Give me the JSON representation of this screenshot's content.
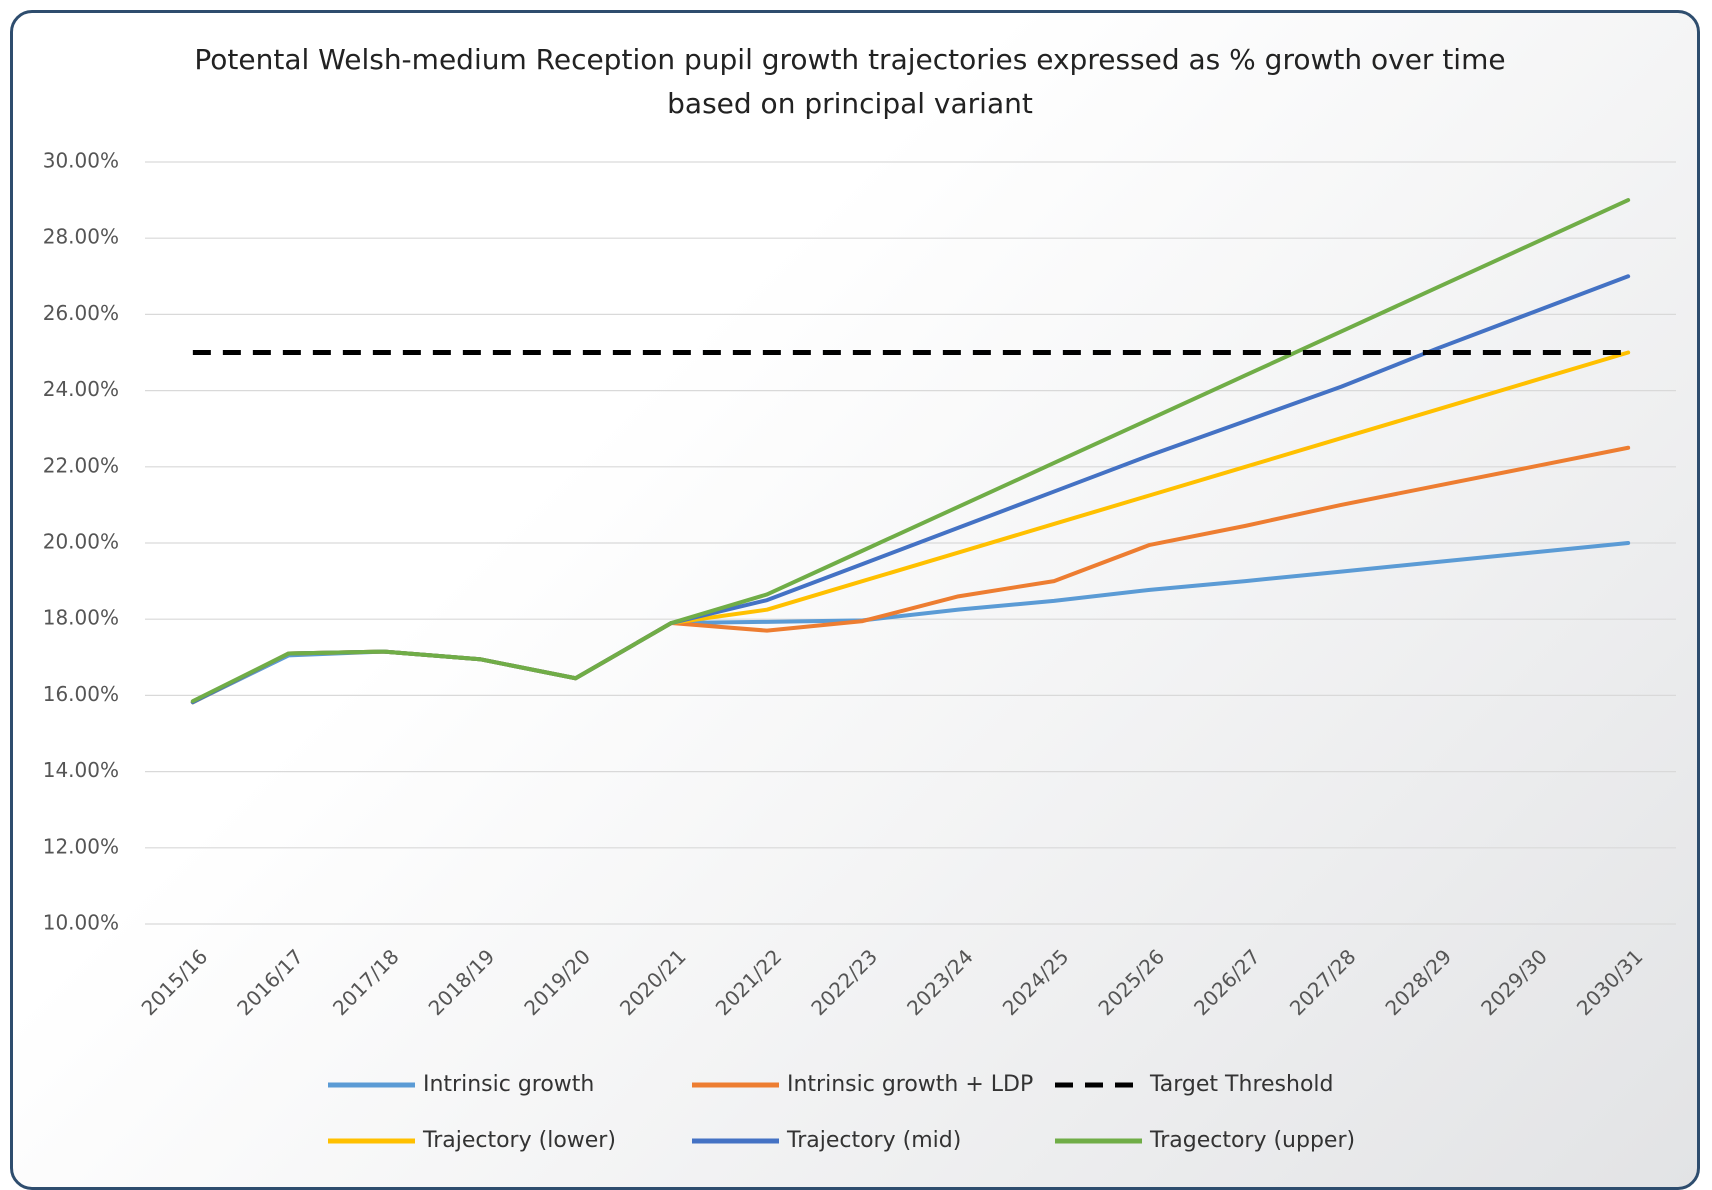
{
  "chart_data": {
    "type": "line",
    "title": "Potental Welsh-medium Reception pupil growth trajectories expressed as % growth over time based on principal variant",
    "categories": [
      "2015/16",
      "2016/17",
      "2017/18",
      "2018/19",
      "2019/20",
      "2020/21",
      "2021/22",
      "2022/23",
      "2023/24",
      "2024/25",
      "2025/26",
      "2026/27",
      "2027/28",
      "2028/29",
      "2029/30",
      "2030/31"
    ],
    "ylim": [
      10,
      30
    ],
    "yticks": [
      {
        "value": 10,
        "label": "10.00%"
      },
      {
        "value": 12,
        "label": "12.00%"
      },
      {
        "value": 14,
        "label": "14.00%"
      },
      {
        "value": 16,
        "label": "16.00%"
      },
      {
        "value": 18,
        "label": "18.00%"
      },
      {
        "value": 20,
        "label": "20.00%"
      },
      {
        "value": 22,
        "label": "22.00%"
      },
      {
        "value": 24,
        "label": "24.00%"
      },
      {
        "value": 26,
        "label": "26.00%"
      },
      {
        "value": 28,
        "label": "28.00%"
      },
      {
        "value": 30,
        "label": "30.00%"
      }
    ],
    "grid": true,
    "series": [
      {
        "name": "Intrinsic growth",
        "color": "#5b9bd5",
        "values": [
          15.82,
          17.05,
          17.15,
          16.95,
          16.45,
          17.9,
          17.93,
          17.97,
          18.25,
          18.48,
          18.77,
          19.0,
          19.25,
          19.5,
          19.75,
          20.0
        ]
      },
      {
        "name": "Intrinsic growth + LDP",
        "color": "#ed7d31",
        "values": [
          15.82,
          17.1,
          17.15,
          16.95,
          16.45,
          17.9,
          17.7,
          17.95,
          18.6,
          19.0,
          19.95,
          20.45,
          21.0,
          21.5,
          22.0,
          22.5
        ]
      },
      {
        "name": "Target Threshold",
        "color": "#000000",
        "dashed": true,
        "values": [
          25,
          25,
          25,
          25,
          25,
          25,
          25,
          25,
          25,
          25,
          25,
          25,
          25,
          25,
          25,
          25
        ]
      },
      {
        "name": "Trajectory (lower)",
        "color": "#ffc000",
        "values": [
          15.82,
          17.1,
          17.15,
          16.95,
          16.45,
          17.9,
          18.25,
          19.0,
          19.75,
          20.5,
          21.25,
          22.0,
          22.75,
          23.5,
          24.25,
          25.0
        ]
      },
      {
        "name": "Trajectory (mid)",
        "color": "#4472c4",
        "values": [
          15.82,
          17.1,
          17.15,
          16.95,
          16.45,
          17.9,
          18.5,
          19.45,
          20.4,
          21.35,
          22.3,
          23.2,
          24.1,
          25.1,
          26.05,
          27.0
        ]
      },
      {
        "name": "Tragectory (upper)",
        "color": "#70ad47",
        "values": [
          15.85,
          17.1,
          17.15,
          16.95,
          16.45,
          17.9,
          18.65,
          19.8,
          20.95,
          22.1,
          23.25,
          24.4,
          25.55,
          26.7,
          27.85,
          29.0
        ]
      }
    ]
  }
}
